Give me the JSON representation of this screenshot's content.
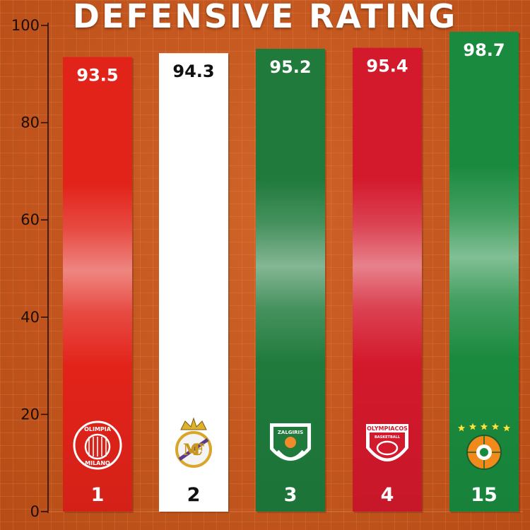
{
  "chart_data": {
    "type": "bar",
    "title": "DEFENSIVE RATING",
    "xlabel": "",
    "ylabel": "",
    "ylim": [
      0,
      100
    ],
    "yticks": [
      0,
      20,
      40,
      60,
      80,
      100
    ],
    "grid": false,
    "categories": [
      "1",
      "2",
      "3",
      "4",
      "15"
    ],
    "values": [
      93.5,
      94.3,
      95.2,
      95.4,
      98.7
    ],
    "value_labels": [
      "93.5",
      "94.3",
      "95.2",
      "95.4",
      "98.7"
    ],
    "bar_colors": [
      "#e2231a",
      "#ffffff",
      "#1f7a3c",
      "#d3192c",
      "#1a8a3e"
    ],
    "label_colors": [
      "#ffffff",
      "#111111",
      "#ffffff",
      "#ffffff",
      "#ffffff"
    ],
    "logos": [
      "olimpia-milano-logo",
      "real-madrid-logo",
      "zalgiris-logo",
      "olympiacos-logo",
      "panathinaikos-logo"
    ],
    "logo_text": [
      "OLIMPIA MILANO",
      "",
      "ZALGIRIS",
      "OLYMPIACOS BASKETBALL",
      ""
    ]
  }
}
